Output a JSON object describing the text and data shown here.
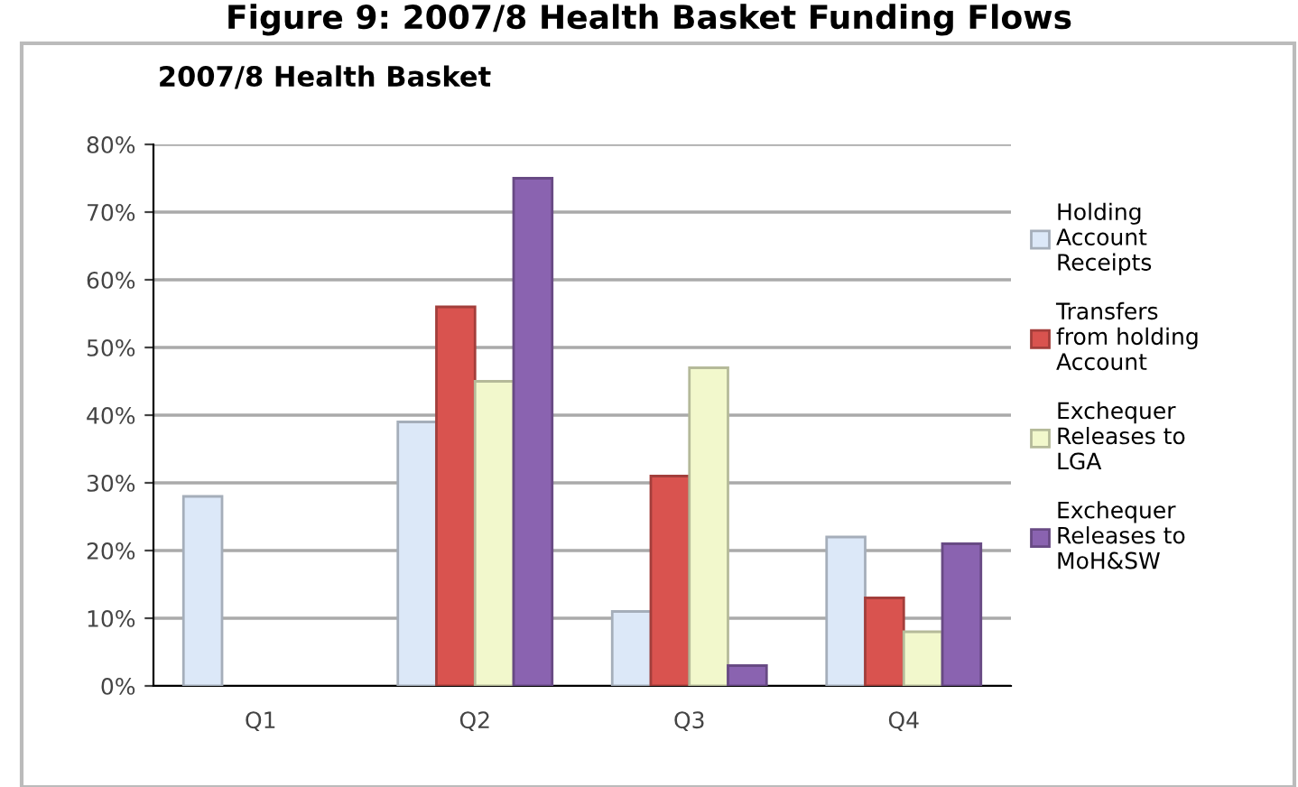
{
  "chart_data": {
    "type": "bar",
    "title": "Figure 9: 2007/8 Health Basket Funding Flows",
    "subtitle": "2007/8 Health Basket",
    "categories": [
      "Q1",
      "Q2",
      "Q3",
      "Q4"
    ],
    "series": [
      {
        "name": "Holding Account Receipts",
        "color": "#dce8f8",
        "values": [
          28,
          39,
          11,
          22
        ]
      },
      {
        "name": "Transfers from holding Account",
        "color": "#d9534f",
        "values": [
          null,
          56,
          31,
          13
        ]
      },
      {
        "name": "Exchequer Releases to LGA",
        "color": "#f2f8cc",
        "values": [
          null,
          45,
          47,
          8
        ]
      },
      {
        "name": "Exchequer Releases to MoH&SW",
        "color": "#8a63b0",
        "values": [
          null,
          75,
          3,
          21
        ]
      }
    ],
    "ylim": [
      0,
      80
    ],
    "yticks": [
      {
        "value": 0,
        "label": "0%"
      },
      {
        "value": 10,
        "label": "10%"
      },
      {
        "value": 20,
        "label": "20%"
      },
      {
        "value": 30,
        "label": "30%"
      },
      {
        "value": 40,
        "label": "40%"
      },
      {
        "value": 50,
        "label": "50%"
      },
      {
        "value": 60,
        "label": "60%"
      },
      {
        "value": 70,
        "label": "70%"
      },
      {
        "value": 80,
        "label": "80%"
      }
    ],
    "grid": "y",
    "legend": "right"
  }
}
